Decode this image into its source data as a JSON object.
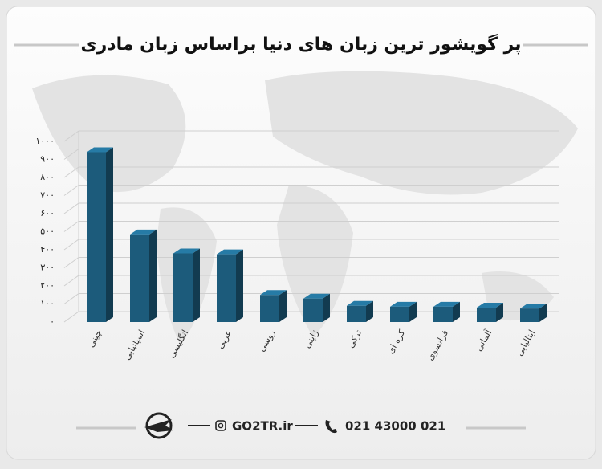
{
  "chart_data": {
    "type": "bar3d",
    "title": "پر گویشور ترین زبان های دنیا براساس زبان مادری",
    "categories": [
      "چینی",
      "اسپانیایی",
      "انگلیسی",
      "عربی",
      "روسی",
      "ژاپنی",
      "ترکی",
      "کره ای",
      "فرانسوی",
      "آلمانی",
      "ایتالیایی"
    ],
    "values": [
      940,
      485,
      380,
      375,
      150,
      130,
      90,
      85,
      85,
      80,
      75
    ],
    "color": "#1c5b7b",
    "ylim": [
      0,
      1000
    ],
    "yticks": [
      {
        "value": 0,
        "label": "۰"
      },
      {
        "value": 100,
        "label": "۱۰۰"
      },
      {
        "value": 200,
        "label": "۲۰۰"
      },
      {
        "value": 300,
        "label": "۳۰۰"
      },
      {
        "value": 400,
        "label": "۴۰۰"
      },
      {
        "value": 500,
        "label": "۵۰۰"
      },
      {
        "value": 600,
        "label": "۶۰۰"
      },
      {
        "value": 700,
        "label": "۷۰۰"
      },
      {
        "value": 800,
        "label": "۸۰۰"
      },
      {
        "value": 900,
        "label": "۹۰۰"
      },
      {
        "value": 1000,
        "label": "۱۰۰۰"
      }
    ],
    "grid": true
  },
  "footer": {
    "website": "GO2TR.ir",
    "phone": "021 43000 021"
  }
}
